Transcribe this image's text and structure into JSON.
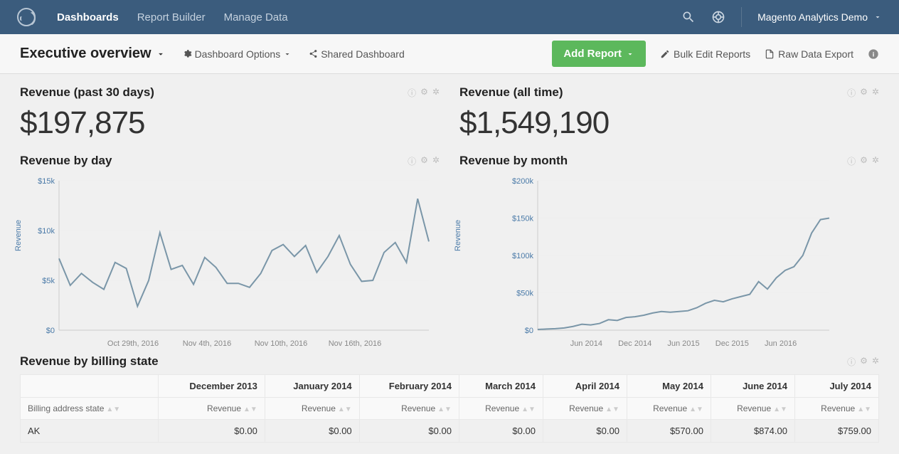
{
  "topbar": {
    "nav": {
      "dashboards": "Dashboards",
      "report_builder": "Report Builder",
      "manage_data": "Manage Data"
    },
    "account": "Magento Analytics Demo"
  },
  "toolbar": {
    "dashboard_name": "Executive overview",
    "options_label": "Dashboard Options",
    "shared_label": "Shared Dashboard",
    "add_report": "Add Report",
    "bulk_edit": "Bulk Edit Reports",
    "raw_export": "Raw Data Export"
  },
  "cards": {
    "rev30": {
      "title": "Revenue (past 30 days)",
      "value": "$197,875"
    },
    "revall": {
      "title": "Revenue (all time)",
      "value": "$1,549,190"
    },
    "byday": {
      "title": "Revenue by day",
      "ylabel": "Revenue",
      "yticks": [
        {
          "v": 0,
          "label": "$0"
        },
        {
          "v": 5000,
          "label": "$5k"
        },
        {
          "v": 10000,
          "label": "$10k"
        },
        {
          "v": 15000,
          "label": "$15k"
        }
      ],
      "ymax": 15000,
      "xticks": [
        "Oct 29th, 2016",
        "Nov 4th, 2016",
        "Nov 10th, 2016",
        "Nov 16th, 2016"
      ],
      "values": [
        7200,
        4500,
        5700,
        4800,
        4100,
        6800,
        6200,
        2400,
        5000,
        9800,
        6100,
        6500,
        4600,
        7300,
        6300,
        4700,
        4700,
        4300,
        5700,
        8000,
        8600,
        7400,
        8500,
        5800,
        7400,
        9500,
        6600,
        4900,
        5000,
        7800,
        8800,
        6800,
        13200,
        8900
      ],
      "line_color": "#6a8798",
      "grid_color": "#eeeeee",
      "axis_color": "#cccccc",
      "tick_color": "#4a7aa8"
    },
    "bymonth": {
      "title": "Revenue by month",
      "ylabel": "Revenue",
      "yticks": [
        {
          "v": 0,
          "label": "$0"
        },
        {
          "v": 50000,
          "label": "$50k"
        },
        {
          "v": 100000,
          "label": "$100k"
        },
        {
          "v": 150000,
          "label": "$150k"
        },
        {
          "v": 200000,
          "label": "$200k"
        }
      ],
      "ymax": 200000,
      "xticks": [
        "Jun 2014",
        "Dec 2014",
        "Jun 2015",
        "Dec 2015",
        "Jun 2016"
      ],
      "values": [
        1000,
        1500,
        2000,
        3000,
        5000,
        8000,
        7000,
        9000,
        14000,
        13000,
        17000,
        18000,
        20000,
        23000,
        25000,
        24000,
        25000,
        26000,
        30000,
        36000,
        40000,
        38000,
        42000,
        45000,
        48000,
        65000,
        55000,
        70000,
        80000,
        85000,
        100000,
        130000,
        148000,
        150000
      ],
      "line_color": "#6a8798",
      "grid_color": "#eeeeee",
      "axis_color": "#cccccc",
      "tick_color": "#4a7aa8"
    },
    "bystate": {
      "title": "Revenue by billing state",
      "row_label": "Billing address state",
      "subheader": "Revenue",
      "months": [
        "December 2013",
        "January 2014",
        "February 2014",
        "March 2014",
        "April 2014",
        "May 2014",
        "June 2014",
        "July 2014"
      ],
      "rows": [
        {
          "state": "AK",
          "vals": [
            "$0.00",
            "$0.00",
            "$0.00",
            "$0.00",
            "$0.00",
            "$570.00",
            "$874.00",
            "$759.00"
          ]
        }
      ]
    }
  },
  "colors": {
    "topbar_bg": "#3b5c7d",
    "accent_green": "#5cb85c"
  }
}
